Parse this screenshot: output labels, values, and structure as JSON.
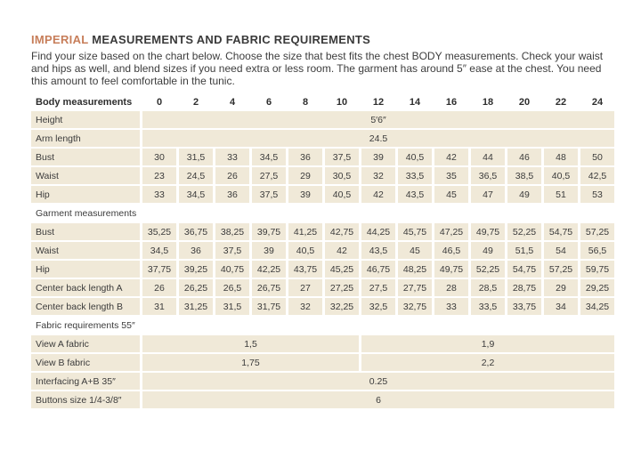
{
  "page": {
    "title_highlight": "IMPERIAL",
    "title_rest": " MEASUREMENTS AND FABRIC REQUIREMENTS",
    "intro": "Find your size based on the chart below. Choose the size that best fits the chest BODY measurements.  Check your waist and hips as well, and blend sizes if you need extra or less room. The garment has around 5″ ease at the chest. You need this amount to feel comfortable in the tunic."
  },
  "colors": {
    "accent": "#c77e5a",
    "cell_background": "#f0e9d8",
    "text": "#3b3b3b"
  },
  "table": {
    "header_label": "Body measurements",
    "sizes": [
      "0",
      "2",
      "4",
      "6",
      "8",
      "10",
      "12",
      "14",
      "16",
      "18",
      "20",
      "22",
      "24"
    ],
    "rows": [
      {
        "type": "span",
        "label": "Height",
        "value": "5′6″"
      },
      {
        "type": "span",
        "label": "Arm length",
        "value": "24.5"
      },
      {
        "type": "cells",
        "label": "Bust",
        "values": [
          "30",
          "31,5",
          "33",
          "34,5",
          "36",
          "37,5",
          "39",
          "40,5",
          "42",
          "44",
          "46",
          "48",
          "50"
        ]
      },
      {
        "type": "cells",
        "label": "Waist",
        "values": [
          "23",
          "24,5",
          "26",
          "27,5",
          "29",
          "30,5",
          "32",
          "33,5",
          "35",
          "36,5",
          "38,5",
          "40,5",
          "42,5"
        ]
      },
      {
        "type": "cells",
        "label": "Hip",
        "values": [
          "33",
          "34,5",
          "36",
          "37,5",
          "39",
          "40,5",
          "42",
          "43,5",
          "45",
          "47",
          "49",
          "51",
          "53"
        ]
      },
      {
        "type": "section",
        "label": "Garment measurements"
      },
      {
        "type": "cells",
        "label": "Bust",
        "values": [
          "35,25",
          "36,75",
          "38,25",
          "39,75",
          "41,25",
          "42,75",
          "44,25",
          "45,75",
          "47,25",
          "49,75",
          "52,25",
          "54,75",
          "57,25"
        ]
      },
      {
        "type": "cells",
        "label": "Waist",
        "values": [
          "34,5",
          "36",
          "37,5",
          "39",
          "40,5",
          "42",
          "43,5",
          "45",
          "46,5",
          "49",
          "51,5",
          "54",
          "56,5"
        ]
      },
      {
        "type": "cells",
        "label": "Hip",
        "values": [
          "37,75",
          "39,25",
          "40,75",
          "42,25",
          "43,75",
          "45,25",
          "46,75",
          "48,25",
          "49,75",
          "52,25",
          "54,75",
          "57,25",
          "59,75"
        ]
      },
      {
        "type": "cells",
        "label": "Center back length A",
        "values": [
          "26",
          "26,25",
          "26,5",
          "26,75",
          "27",
          "27,25",
          "27,5",
          "27,75",
          "28",
          "28,5",
          "28,75",
          "29",
          "29,25"
        ]
      },
      {
        "type": "cells",
        "label": "Center back length B",
        "values": [
          "31",
          "31,25",
          "31,5",
          "31,75",
          "32",
          "32,25",
          "32,5",
          "32,75",
          "33",
          "33,5",
          "33,75",
          "34",
          "34,25"
        ]
      },
      {
        "type": "section",
        "label": "Fabric requirements 55″"
      },
      {
        "type": "split",
        "label": "View A fabric",
        "values": [
          "1,5",
          "1,9"
        ],
        "spans": [
          6,
          7
        ]
      },
      {
        "type": "split",
        "label": "View B fabric",
        "values": [
          "1,75",
          "2,2"
        ],
        "spans": [
          6,
          7
        ]
      },
      {
        "type": "span",
        "label": "Interfacing  A+B 35″",
        "value": "0.25"
      },
      {
        "type": "span",
        "label": "Buttons size 1/4-3/8″",
        "value": "6"
      }
    ]
  }
}
